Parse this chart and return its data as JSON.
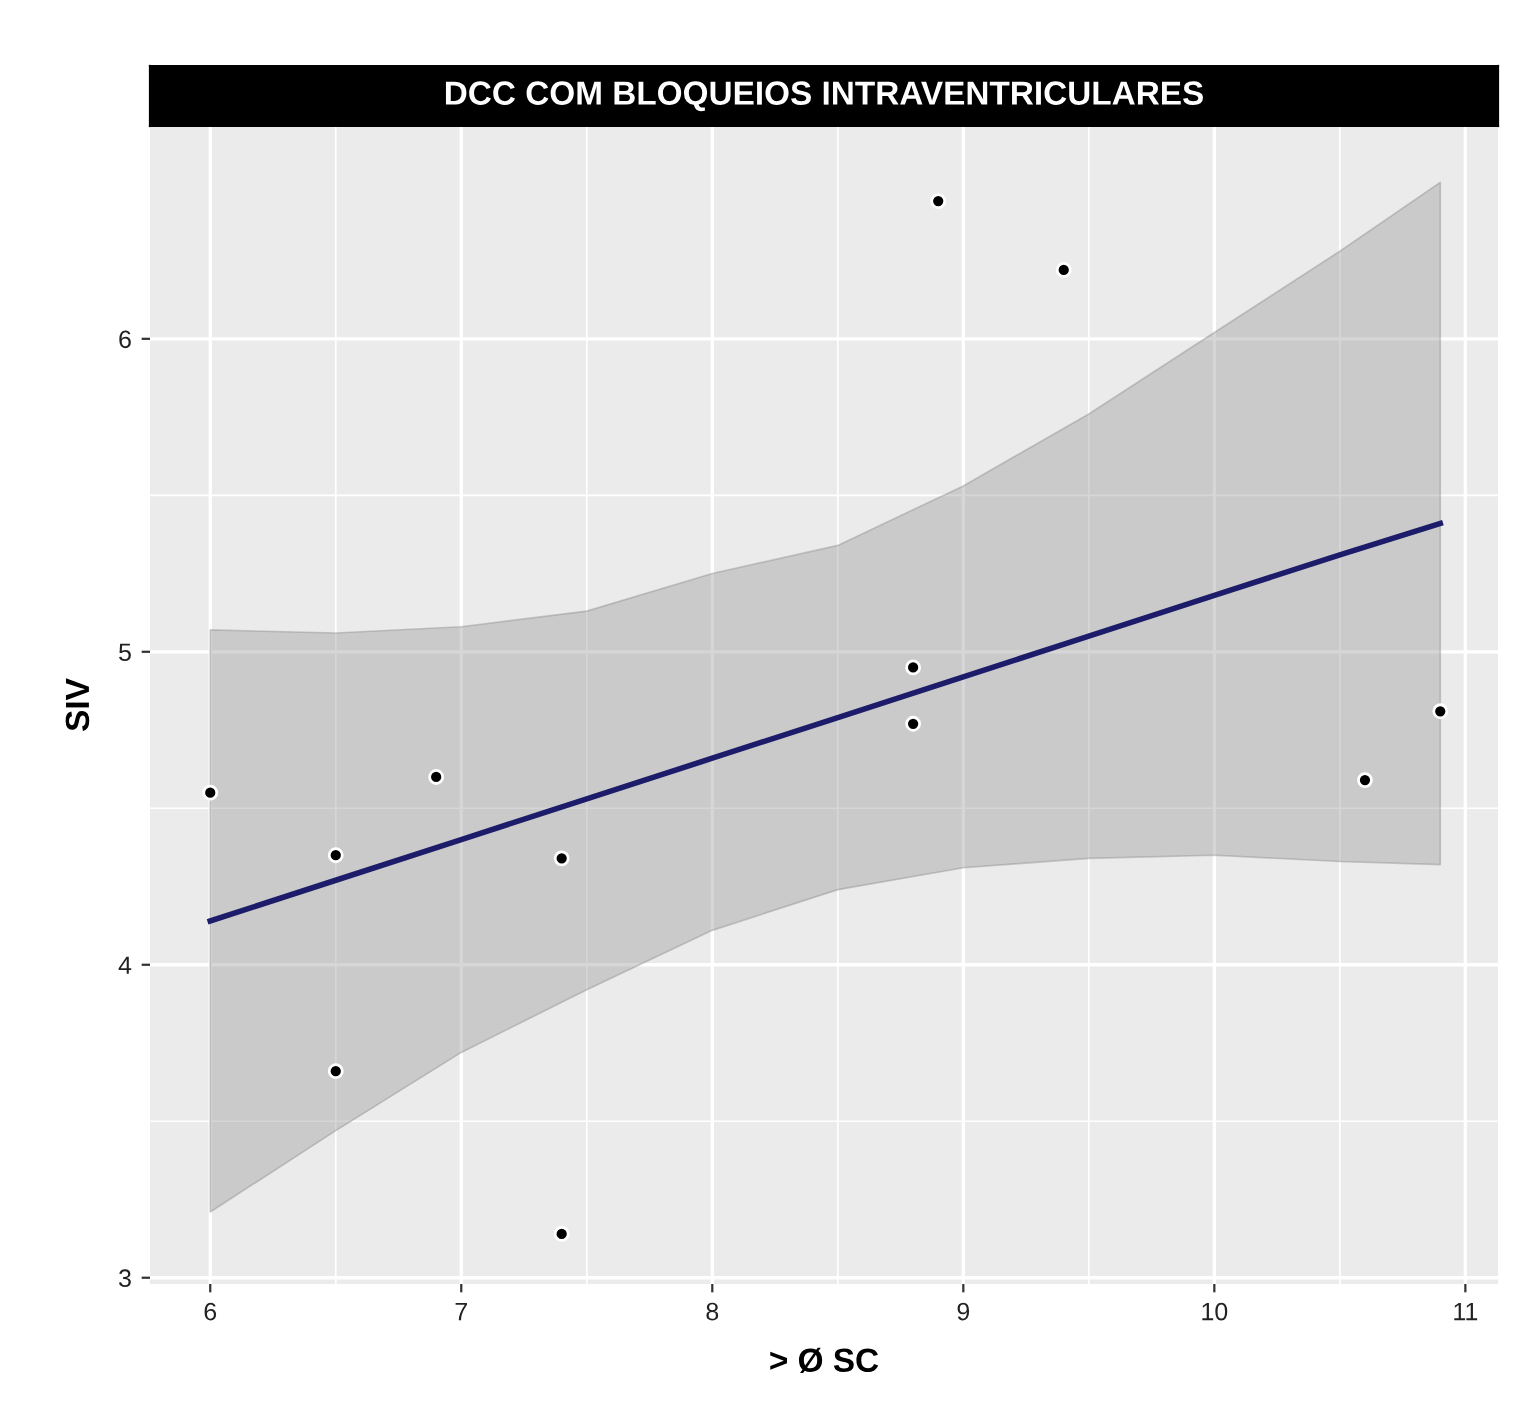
{
  "chart_data": {
    "type": "scatter",
    "title": "DCC COM BLOQUEIOS INTRAVENTRICULARES",
    "xlabel": "> Ø SC",
    "ylabel": "SIV",
    "xlim": [
      5.76,
      11.13
    ],
    "ylim": [
      2.98,
      6.68
    ],
    "xticks": [
      6,
      7,
      8,
      9,
      10,
      11
    ],
    "yticks": [
      3,
      4,
      5,
      6
    ],
    "grid": true,
    "series": [
      {
        "marker": "circle",
        "color": "#000000",
        "x": [
          6.0,
          6.5,
          6.9,
          6.5,
          7.4,
          7.4,
          8.9,
          9.4,
          8.8,
          8.8,
          10.9,
          10.6
        ],
        "values": [
          4.55,
          4.35,
          4.6,
          3.66,
          4.34,
          3.14,
          6.44,
          6.22,
          4.95,
          4.77,
          4.81,
          4.59
        ]
      },
      {
        "type": "line",
        "marker": "none",
        "color": "#1c1c6b",
        "x": [
          6,
          6.5,
          7,
          7.5,
          8,
          8.5,
          9,
          9.5,
          10,
          10.5,
          10.9
        ],
        "values": [
          4.14,
          4.27,
          4.4,
          4.53,
          4.66,
          4.79,
          4.92,
          5.05,
          5.18,
          5.31,
          5.41
        ],
        "lower": [
          3.21,
          3.47,
          3.72,
          3.92,
          4.11,
          4.24,
          4.31,
          4.34,
          4.35,
          4.33,
          4.32
        ],
        "upper": [
          5.07,
          5.06,
          5.08,
          5.13,
          5.25,
          5.34,
          5.53,
          5.76,
          6.02,
          6.28,
          6.5
        ]
      }
    ]
  }
}
